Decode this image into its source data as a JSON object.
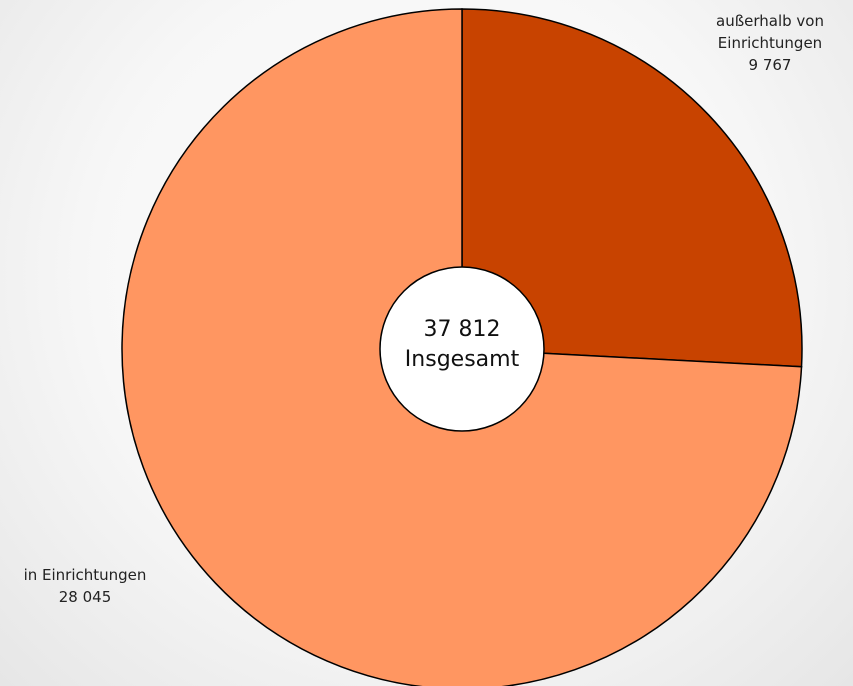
{
  "chart_data": {
    "type": "pie",
    "categories": [
      "außerhalb von Einrichtungen",
      "in Einrichtungen"
    ],
    "values": [
      9767,
      28045
    ],
    "value_labels": [
      "9 767",
      "28 045"
    ],
    "colors": [
      "#c84300",
      "#ff9661"
    ],
    "center_text": [
      "37 812",
      "Insgesamt"
    ]
  }
}
